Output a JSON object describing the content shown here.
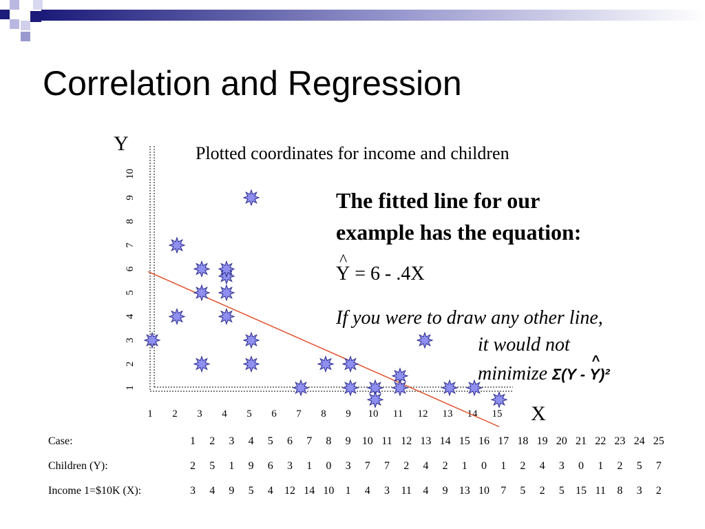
{
  "slide": {
    "title": "Correlation and Regression",
    "caption": "Plotted coordinates for income and children",
    "fitted_line_text_1": "The fitted line for our",
    "fitted_line_text_2": "example has the equation:",
    "equation_y": "Y",
    "equation_rest": " = 6 - .4X",
    "note_1": "If you were to draw any other line,",
    "note_2": "it would not",
    "note_3": "minimize ",
    "sigma_text": "Σ(Y - ",
    "sigma_y": "Y",
    "sigma_close": ")²"
  },
  "chart_data": {
    "type": "scatter",
    "title": "Plotted coordinates for income and children",
    "xlabel": "X",
    "ylabel": "Y",
    "xlim": [
      1,
      15
    ],
    "ylim": [
      1,
      10
    ],
    "x_ticks": [
      "1",
      "2",
      "3",
      "4",
      "5",
      "6",
      "7",
      "8",
      "9",
      "10",
      "11",
      "12",
      "13",
      "14",
      "15"
    ],
    "y_ticks": [
      "1",
      "2",
      "3",
      "4",
      "5",
      "6",
      "7",
      "8",
      "9",
      "10"
    ],
    "points": [
      {
        "x": 1,
        "y": 3
      },
      {
        "x": 2,
        "y": 4
      },
      {
        "x": 2,
        "y": 7
      },
      {
        "x": 3,
        "y": 2
      },
      {
        "x": 3,
        "y": 5
      },
      {
        "x": 3,
        "y": 6
      },
      {
        "x": 4,
        "y": 4
      },
      {
        "x": 4,
        "y": 5
      },
      {
        "x": 4,
        "y": 5.7
      },
      {
        "x": 4,
        "y": 6
      },
      {
        "x": 5,
        "y": 9
      },
      {
        "x": 5,
        "y": 3
      },
      {
        "x": 5,
        "y": 2
      },
      {
        "x": 7,
        "y": 1
      },
      {
        "x": 8,
        "y": 2
      },
      {
        "x": 9,
        "y": 2
      },
      {
        "x": 9,
        "y": 1
      },
      {
        "x": 10,
        "y": 1
      },
      {
        "x": 10,
        "y": 0.5
      },
      {
        "x": 11,
        "y": 1.5
      },
      {
        "x": 11,
        "y": 1
      },
      {
        "x": 12,
        "y": 3
      },
      {
        "x": 13,
        "y": 1
      },
      {
        "x": 14,
        "y": 1
      },
      {
        "x": 15,
        "y": 0.5
      }
    ],
    "fitted_line": {
      "intercept": 6,
      "slope": -0.4,
      "x_start": 1,
      "x_end": 15
    },
    "colors": {
      "point_fill": "#8f8ff0",
      "point_stroke": "#2a2a8a",
      "line": "#e0502a",
      "axis": "#555555"
    }
  },
  "table": {
    "case_label": "Case:",
    "children_label": "Children (Y):",
    "income_label": "Income 1=$10K (X):",
    "case": [
      "1",
      "2",
      "3",
      "4",
      "5",
      "6",
      "7",
      "8",
      "9",
      "10",
      "11",
      "12",
      "13",
      "14",
      "15",
      "16",
      "17",
      "18",
      "19",
      "20",
      "21",
      "22",
      "23",
      "24",
      "25"
    ],
    "children": [
      "2",
      "5",
      "1",
      "9",
      "6",
      "3",
      "1",
      "0",
      "3",
      "7",
      "7",
      "2",
      "4",
      "2",
      "1",
      "0",
      "1",
      "2",
      "4",
      "3",
      "0",
      "1",
      "2",
      "5",
      "7"
    ],
    "income": [
      "3",
      "4",
      "9",
      "5",
      "4",
      "12",
      "14",
      "10",
      "1",
      "4",
      "3",
      "11",
      "4",
      "9",
      "13",
      "10",
      "7",
      "5",
      "2",
      "5",
      "15",
      "11",
      "8",
      "3",
      "2"
    ]
  }
}
